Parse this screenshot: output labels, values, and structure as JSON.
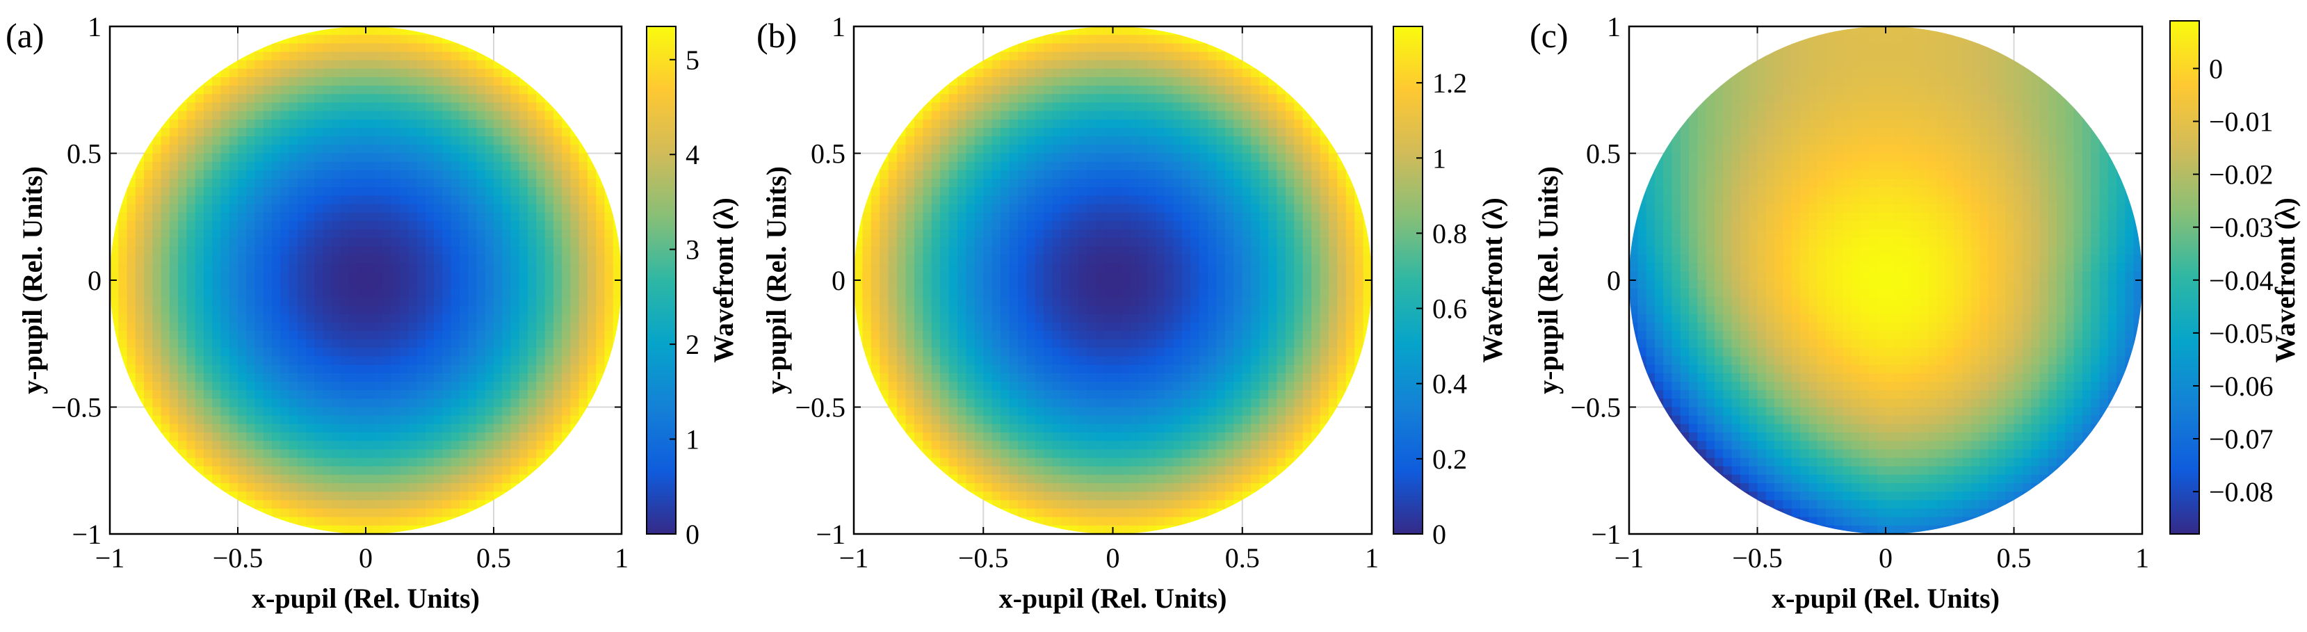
{
  "chart_data": [
    {
      "panel_label": "(a)",
      "type": "heatmap",
      "xlabel": "x-pupil (Rel. Units)",
      "ylabel": "y-pupil (Rel. Units)",
      "xlim": [
        -1,
        1
      ],
      "ylim": [
        -1,
        1
      ],
      "xticks": [
        -1,
        -0.5,
        0,
        0.5,
        1
      ],
      "xtick_labels": [
        "−1",
        "−0.5",
        "0",
        "0.5",
        "1"
      ],
      "yticks": [
        -1,
        -0.5,
        0,
        0.5,
        1
      ],
      "ytick_labels": [
        "−1",
        "−0.5",
        "0",
        "0.5",
        "1"
      ],
      "grid": true,
      "colorbar": {
        "label": "Wavefront (λ)",
        "range": [
          0,
          5.35
        ],
        "ticks": [
          0,
          1,
          2,
          3,
          4,
          5
        ],
        "tick_labels": [
          "0",
          "1",
          "2",
          "3",
          "4",
          "5"
        ]
      },
      "surface": {
        "description_model": "radially symmetric defocus: W = 5.3 * r^2",
        "center": [
          0,
          0
        ],
        "min_value": 0,
        "max_value": 5.3
      }
    },
    {
      "panel_label": "(b)",
      "type": "heatmap",
      "xlabel": "x-pupil (Rel. Units)",
      "ylabel": "y-pupil (Rel. Units)",
      "xlim": [
        -1,
        1
      ],
      "ylim": [
        -1,
        1
      ],
      "xticks": [
        -1,
        -0.5,
        0,
        0.5,
        1
      ],
      "xtick_labels": [
        "−1",
        "−0.5",
        "0",
        "0.5",
        "1"
      ],
      "yticks": [
        -1,
        -0.5,
        0,
        0.5,
        1
      ],
      "ytick_labels": [
        "−1",
        "−0.5",
        "0",
        "0.5",
        "1"
      ],
      "grid": true,
      "colorbar": {
        "label": "Wavefront (λ)",
        "range": [
          0,
          1.35
        ],
        "ticks": [
          0,
          0.2,
          0.4,
          0.6,
          0.8,
          1,
          1.2
        ],
        "tick_labels": [
          "0",
          "0.2",
          "0.4",
          "0.6",
          "0.8",
          "1",
          "1.2"
        ]
      },
      "surface": {
        "description_model": "radially symmetric defocus: W = 1.33 * r^2",
        "center": [
          0,
          0
        ],
        "min_value": 0,
        "max_value": 1.33
      }
    },
    {
      "panel_label": "(c)",
      "type": "heatmap",
      "xlabel": "x-pupil (Rel. Units)",
      "ylabel": "y-pupil (Rel. Units)",
      "xlim": [
        -1,
        1
      ],
      "ylim": [
        -1,
        1
      ],
      "xticks": [
        -1,
        -0.5,
        0,
        0.5,
        1
      ],
      "xtick_labels": [
        "−1",
        "−0.5",
        "0",
        "0.5",
        "1"
      ],
      "yticks": [
        -1,
        -0.5,
        0,
        0.5,
        1
      ],
      "ytick_labels": [
        "−1",
        "−0.5",
        "0",
        "0.5",
        "1"
      ],
      "grid": true,
      "colorbar": {
        "label": "Wavefront (λ)",
        "range": [
          -0.088,
          0.009
        ],
        "ticks": [
          -0.08,
          -0.07,
          -0.06,
          -0.05,
          -0.04,
          -0.03,
          -0.02,
          -0.01,
          0
        ],
        "tick_labels": [
          "−0.08",
          "−0.07",
          "−0.06",
          "−0.05",
          "−0.04",
          "−0.03",
          "−0.02",
          "−0.01",
          "0"
        ]
      },
      "surface": {
        "description_model": "residual wavefront: maximum near pupil center and top edge, dips to about -0.088 at lower-left edge",
        "max_value": 0.009,
        "min_value": -0.088
      }
    }
  ],
  "colormap": {
    "name": "parula",
    "stops": [
      "#352a87",
      "#0f5cdd",
      "#1481d6",
      "#06a4ca",
      "#2eb7a4",
      "#87bf77",
      "#d1bb59",
      "#fec832",
      "#f9fb0e"
    ]
  }
}
